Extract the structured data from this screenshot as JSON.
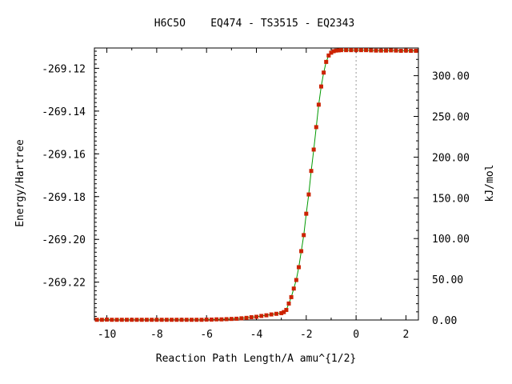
{
  "chart_data": {
    "type": "line",
    "title": "H6C5O    EQ474 - TS3515 - EQ2343",
    "xlabel": "Reaction Path Length/A amu^{1/2}",
    "ylabel": "Energy/Hartree",
    "y2label": "kJ/mol",
    "xlim": [
      -10.5,
      2.5
    ],
    "ylim": [
      -269.2377,
      -269.1105
    ],
    "y2lim": [
      0,
      334
    ],
    "x_ticks": [
      -10,
      -8,
      -6,
      -4,
      -2,
      0,
      2
    ],
    "x_tick_labels": [
      "-10",
      "-8",
      "-6",
      "-4",
      "-2",
      "0",
      "2"
    ],
    "y_ticks": [
      -269.12,
      -269.14,
      -269.16,
      -269.18,
      -269.2,
      -269.22
    ],
    "y_tick_labels": [
      "-269.12",
      "-269.14",
      "-269.16",
      "-269.18",
      "-269.20",
      "-269.22"
    ],
    "y2_ticks": [
      0,
      50,
      100,
      150,
      200,
      250,
      300
    ],
    "y2_tick_labels": [
      "0.00",
      "50.00",
      "100.00",
      "150.00",
      "200.00",
      "250.00",
      "300.00"
    ],
    "ts_marker_x": 0,
    "grid": false,
    "colors": {
      "marker": "#cc2200",
      "line": "#009900",
      "ts_line": "#999999"
    },
    "series": [
      {
        "x": [
          -10.4,
          -10.2,
          -10.0,
          -9.8,
          -9.6,
          -9.4,
          -9.2,
          -9.0,
          -8.8,
          -8.6,
          -8.4,
          -8.2,
          -8.0,
          -7.8,
          -7.6,
          -7.4,
          -7.2,
          -7.0,
          -6.8,
          -6.6,
          -6.4,
          -6.2,
          -6.0,
          -5.8,
          -5.6,
          -5.4,
          -5.2,
          -5.0,
          -4.8,
          -4.6,
          -4.4,
          -4.2,
          -4.0,
          -3.8,
          -3.6,
          -3.4,
          -3.2,
          -3.0,
          -2.9,
          -2.8,
          -2.7,
          -2.6,
          -2.5,
          -2.4,
          -2.3,
          -2.2,
          -2.1,
          -2.0,
          -1.9,
          -1.8,
          -1.7,
          -1.6,
          -1.5,
          -1.4,
          -1.3,
          -1.2,
          -1.1,
          -1.0,
          -0.9,
          -0.8,
          -0.7,
          -0.6,
          -0.4,
          -0.2,
          0.0,
          0.2,
          0.4,
          0.6,
          0.8,
          1.0,
          1.2,
          1.4,
          1.6,
          1.8,
          2.0,
          2.2,
          2.4
        ],
        "y": [
          -269.2376,
          -269.2376,
          -269.2375,
          -269.2376,
          -269.2376,
          -269.2376,
          -269.2376,
          -269.2376,
          -269.2376,
          -269.2376,
          -269.2376,
          -269.2376,
          -269.2376,
          -269.2376,
          -269.2376,
          -269.2376,
          -269.2376,
          -269.2376,
          -269.2376,
          -269.2376,
          -269.2376,
          -269.2376,
          -269.2375,
          -269.2375,
          -269.2374,
          -269.2374,
          -269.2373,
          -269.2372,
          -269.2371,
          -269.2369,
          -269.2367,
          -269.2364,
          -269.2362,
          -269.2358,
          -269.2355,
          -269.2351,
          -269.2348,
          -269.2345,
          -269.234,
          -269.233,
          -269.23,
          -269.227,
          -269.223,
          -269.219,
          -269.213,
          -269.2055,
          -269.198,
          -269.188,
          -269.179,
          -269.168,
          -269.158,
          -269.1475,
          -269.137,
          -269.1285,
          -269.122,
          -269.117,
          -269.114,
          -269.1127,
          -269.112,
          -269.1117,
          -269.1116,
          -269.1115,
          -269.1115,
          -269.1115,
          -269.1115,
          -269.1115,
          -269.1115,
          -269.1116,
          -269.1117,
          -269.1117,
          -269.1117,
          -269.1116,
          -269.1117,
          -269.1118,
          -269.1117,
          -269.1118,
          -269.1118
        ]
      }
    ]
  }
}
